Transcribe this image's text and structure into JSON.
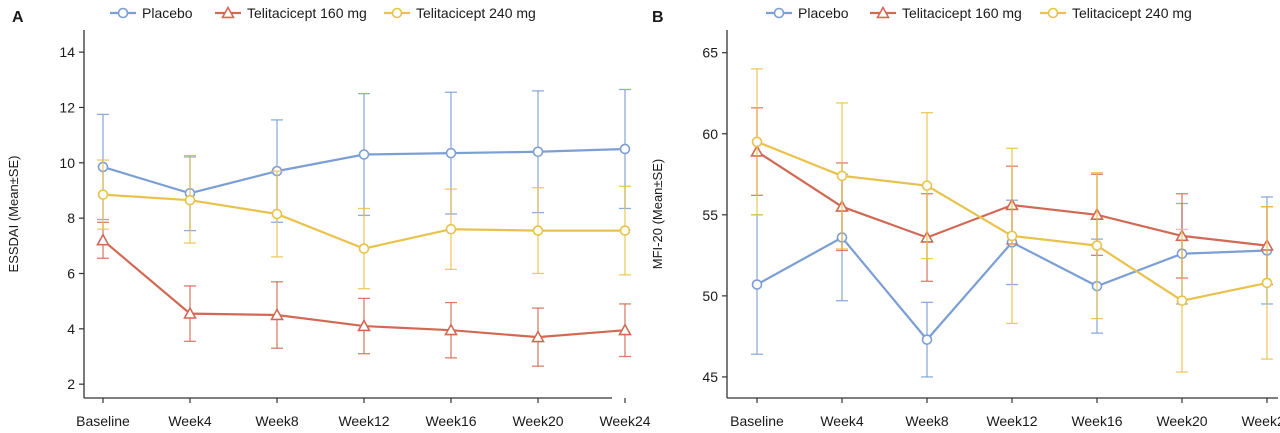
{
  "colors": {
    "placebo": "#7b9fd4",
    "tel160": "#d06a55",
    "tel240": "#e8c24a",
    "axis": "#333333"
  },
  "chart_data": [
    {
      "panel_label": "A",
      "type": "line",
      "title": "",
      "xlabel": "",
      "ylabel": "ESSDAI (Mean±SE)",
      "categories": [
        "Baseline",
        "Week4",
        "Week8",
        "Week12",
        "Week16",
        "Week20",
        "Week24"
      ],
      "ylim": [
        1.5,
        14.8
      ],
      "yticks": [
        2,
        4,
        6,
        8,
        10,
        12,
        14
      ],
      "series": [
        {
          "name": "Placebo",
          "marker": "circle",
          "color_key": "placebo",
          "values": [
            9.85,
            8.9,
            9.7,
            10.3,
            10.35,
            10.4,
            10.5
          ],
          "err": [
            1.9,
            1.35,
            1.85,
            2.2,
            2.2,
            2.2,
            2.15
          ]
        },
        {
          "name": "Telitacicept 160 mg",
          "marker": "triangle",
          "color_key": "tel160",
          "values": [
            7.2,
            4.55,
            4.5,
            4.1,
            3.95,
            3.7,
            3.95
          ],
          "err": [
            0.65,
            1.0,
            1.2,
            1.0,
            1.0,
            1.05,
            0.95
          ]
        },
        {
          "name": "Telitacicept 240 mg",
          "marker": "circle",
          "color_key": "tel240",
          "values": [
            8.85,
            8.65,
            8.15,
            6.9,
            7.6,
            7.55,
            7.55
          ],
          "err": [
            1.25,
            1.55,
            1.55,
            1.45,
            1.45,
            1.55,
            1.6
          ]
        }
      ],
      "legend": "top"
    },
    {
      "panel_label": "B",
      "type": "line",
      "title": "",
      "xlabel": "",
      "ylabel": "MFI-20 (Mean±SE)",
      "categories": [
        "Baseline",
        "Week4",
        "Week8",
        "Week12",
        "Week16",
        "Week20",
        "Week24"
      ],
      "ylim": [
        43.7,
        66.4
      ],
      "yticks": [
        45,
        50,
        55,
        60,
        65
      ],
      "series": [
        {
          "name": "Placebo",
          "marker": "circle",
          "color_key": "placebo",
          "values": [
            50.7,
            53.6,
            47.3,
            53.3,
            50.6,
            52.6,
            52.8
          ],
          "err": [
            4.3,
            3.9,
            2.3,
            2.6,
            2.9,
            3.1,
            3.3
          ]
        },
        {
          "name": "Telitacicept 160 mg",
          "marker": "triangle",
          "color_key": "tel160",
          "values": [
            58.9,
            55.5,
            53.6,
            55.6,
            55.0,
            53.7,
            53.1
          ],
          "err": [
            2.7,
            2.7,
            2.7,
            2.4,
            2.5,
            2.6,
            2.4
          ]
        },
        {
          "name": "Telitacicept 240 mg",
          "marker": "circle",
          "color_key": "tel240",
          "values": [
            59.5,
            57.4,
            56.8,
            53.7,
            53.1,
            49.7,
            50.8
          ],
          "err": [
            4.5,
            4.5,
            4.5,
            5.4,
            4.5,
            4.4,
            4.7
          ]
        }
      ],
      "legend": "top"
    }
  ]
}
